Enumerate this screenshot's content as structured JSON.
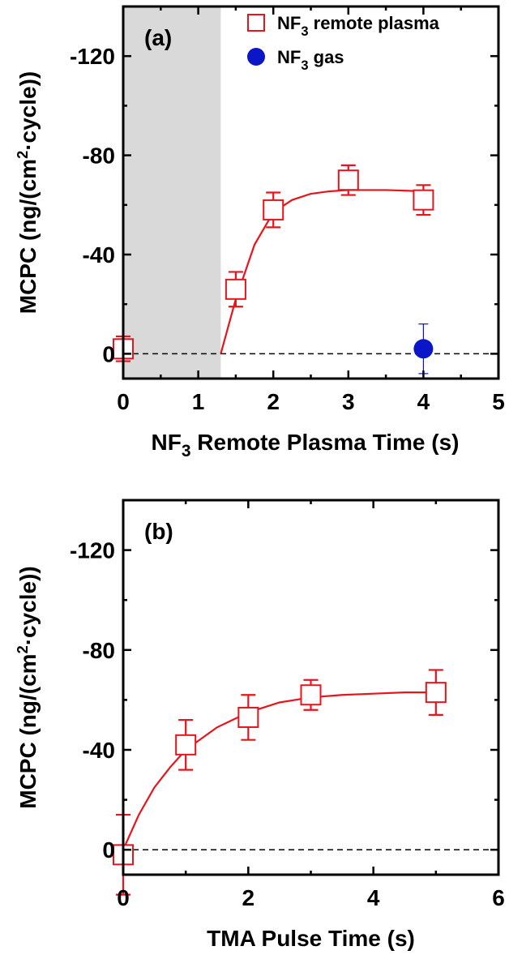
{
  "chart_data": [
    {
      "type": "scatter",
      "panel_label": "(a)",
      "xlabel": "NF3 Remote Plasma Time (s)",
      "xlabel_parts": {
        "pre": "NF",
        "sub": "3",
        "post": " Remote Plasma Time (s)"
      },
      "ylabel": "MCPC (ng/(cm2·cycle))",
      "ylabel_parts": {
        "pre": "MCPC (ng/(cm",
        "sup": "2",
        "post": "·cycle))"
      },
      "xlim": [
        0,
        5
      ],
      "ylim": [
        10,
        -140
      ],
      "x_ticks": [
        0,
        1,
        2,
        3,
        4,
        5
      ],
      "x_tick_labels": [
        "0",
        "1",
        "2",
        "3",
        "4",
        "5"
      ],
      "y_ticks": [
        0,
        -40,
        -80,
        -120
      ],
      "y_tick_labels": [
        "0",
        "-40",
        "-80",
        "-120"
      ],
      "shaded_region_x": [
        0,
        1.3
      ],
      "reference_line_y": 0,
      "legend_position": "top-right",
      "series": [
        {
          "name": "NF3 remote plasma",
          "name_parts": {
            "pre": "NF",
            "sub": "3",
            "post": " remote plasma"
          },
          "marker": "open-square",
          "color": "#e8141c",
          "x": [
            0,
            1.5,
            2,
            3,
            4
          ],
          "y": [
            -2,
            -26,
            -58,
            -70,
            -62
          ],
          "err": [
            5,
            7,
            7,
            6,
            6
          ]
        },
        {
          "name": "NF3 gas",
          "name_parts": {
            "pre": "NF",
            "sub": "3",
            "post": " gas"
          },
          "marker": "filled-circle",
          "color": "#0b16c9",
          "x": [
            4
          ],
          "y": [
            -2
          ],
          "err": [
            10
          ]
        }
      ],
      "fit": {
        "color": "#e8141c",
        "x": [
          1.3,
          1.5,
          1.75,
          2,
          2.25,
          2.5,
          2.75,
          3,
          3.25,
          3.5,
          4
        ],
        "y": [
          0,
          -22,
          -44,
          -57,
          -62,
          -64.5,
          -65.5,
          -66,
          -66,
          -66,
          -65.5
        ]
      }
    },
    {
      "type": "scatter",
      "panel_label": "(b)",
      "xlabel": "TMA Pulse Time (s)",
      "ylabel": "MCPC (ng/(cm2·cycle))",
      "ylabel_parts": {
        "pre": "MCPC (ng/(cm",
        "sup": "2",
        "post": "·cycle))"
      },
      "xlim": [
        0,
        6
      ],
      "ylim": [
        10,
        -140
      ],
      "x_ticks": [
        0,
        2,
        4,
        6
      ],
      "x_tick_labels": [
        "0",
        "2",
        "4",
        "6"
      ],
      "y_ticks": [
        0,
        -40,
        -80,
        -120
      ],
      "y_tick_labels": [
        "0",
        "-40",
        "-80",
        "-120"
      ],
      "reference_line_y": 0,
      "series": [
        {
          "name": "",
          "marker": "open-square",
          "color": "#e8141c",
          "x": [
            0,
            1,
            2,
            3,
            5
          ],
          "y": [
            2,
            -42,
            -53,
            -62,
            -63
          ],
          "err": [
            16,
            10,
            9,
            6,
            9
          ]
        }
      ],
      "fit": {
        "color": "#e8141c",
        "x": [
          0,
          0.25,
          0.5,
          0.75,
          1,
          1.5,
          2,
          2.5,
          3,
          3.5,
          4,
          4.5,
          5
        ],
        "y": [
          0,
          -14,
          -25,
          -33,
          -40,
          -49,
          -55,
          -59,
          -61,
          -62,
          -62.5,
          -63,
          -63
        ]
      }
    }
  ]
}
